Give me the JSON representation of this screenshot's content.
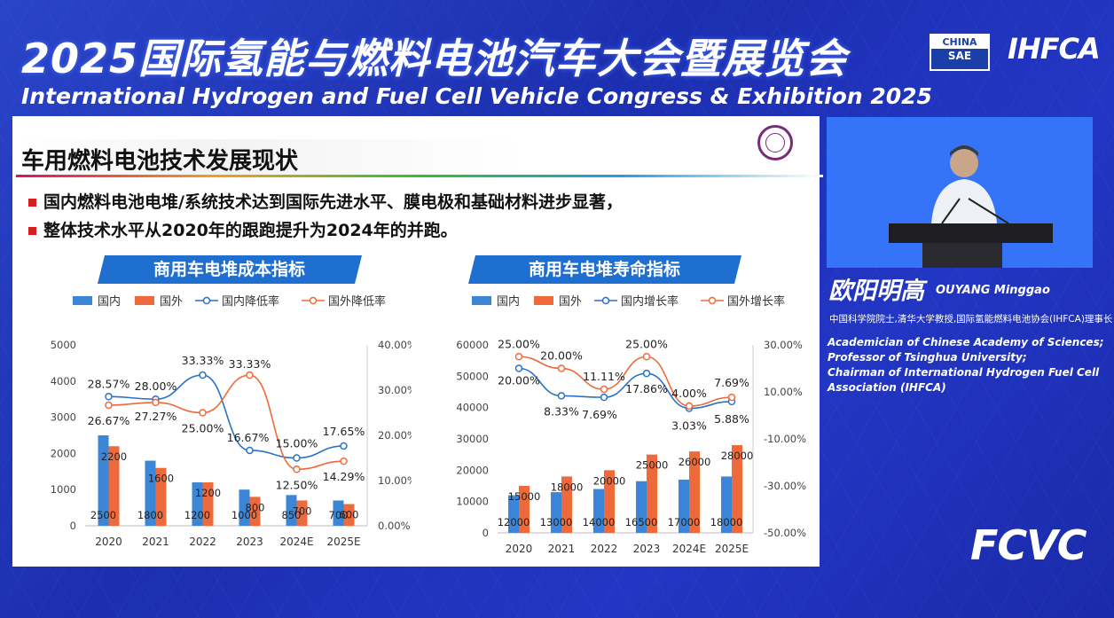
{
  "header": {
    "title_cn": "2025国际氢能与燃料电池汽车大会暨展览会",
    "title_en": "International Hydrogen and Fuel Cell Vehicle Congress & Exhibition 2025",
    "logo_sae_top": "CHINA",
    "logo_sae_bottom": "SAE",
    "logo_ihfca": "IHFCA"
  },
  "slide": {
    "heading": "车用燃料电池技术发展现状",
    "bullets": [
      "国内燃料电池电堆/系统技术达到国际先进水平、膜电极和基础材料进步显著，",
      "整体技术水平从2020年的跟跑提升为2024年的并跑。"
    ]
  },
  "colors": {
    "domestic_bar": "#3b86d6",
    "foreign_bar": "#ef6a3a",
    "domestic_line": "#2a72c8",
    "foreign_line": "#ef6a3a"
  },
  "chart_data": [
    {
      "type": "bar",
      "title": "商用车电堆成本指标",
      "categories": [
        "2020",
        "2021",
        "2022",
        "2023",
        "2024E",
        "2025E"
      ],
      "legend": [
        "国内",
        "国外",
        "国内降低率",
        "国外降低率"
      ],
      "ylim": [
        0,
        5000
      ],
      "yticks": [
        "0",
        "1000",
        "2000",
        "3000",
        "4000",
        "5000"
      ],
      "y2lim": [
        0,
        40
      ],
      "y2ticks": [
        "0.00%",
        "10.00%",
        "20.00%",
        "30.00%",
        "40.00%"
      ],
      "series": [
        {
          "name": "国内",
          "kind": "bar",
          "values": [
            2500,
            1800,
            1200,
            1000,
            850,
            700
          ]
        },
        {
          "name": "国外",
          "kind": "bar",
          "values": [
            2200,
            1600,
            1200,
            800,
            700,
            600
          ]
        },
        {
          "name": "国内降低率",
          "kind": "line",
          "axis": "right",
          "values": [
            28.57,
            28.0,
            33.33,
            16.67,
            15.0,
            17.65
          ],
          "labels": [
            "28.57%",
            "28.00%",
            "33.33%",
            "16.67%",
            "15.00%",
            "17.65%"
          ]
        },
        {
          "name": "国外降低率",
          "kind": "line",
          "axis": "right",
          "values": [
            26.67,
            27.27,
            25.0,
            33.33,
            12.5,
            14.29
          ],
          "labels": [
            "26.67%",
            "27.27%",
            "25.00%",
            "33.33%",
            "12.50%",
            "14.29%"
          ]
        }
      ]
    },
    {
      "type": "bar",
      "title": "商用车电堆寿命指标",
      "categories": [
        "2020",
        "2021",
        "2022",
        "2023",
        "2024E",
        "2025E"
      ],
      "legend": [
        "国内",
        "国外",
        "国内增长率",
        "国外增长率"
      ],
      "ylim": [
        0,
        60000
      ],
      "yticks": [
        "0",
        "10000",
        "20000",
        "30000",
        "40000",
        "50000",
        "60000"
      ],
      "y2lim": [
        -50,
        30
      ],
      "y2ticks": [
        "-50.00%",
        "-30.00%",
        "-10.00%",
        "10.00%",
        "30.00%"
      ],
      "series": [
        {
          "name": "国内",
          "kind": "bar",
          "values": [
            12000,
            13000,
            14000,
            16500,
            17000,
            18000
          ]
        },
        {
          "name": "国外",
          "kind": "bar",
          "values": [
            15000,
            18000,
            20000,
            25000,
            26000,
            28000
          ]
        },
        {
          "name": "国内增长率",
          "kind": "line",
          "axis": "right",
          "values": [
            20.0,
            8.33,
            7.69,
            17.86,
            3.03,
            5.88
          ],
          "labels": [
            "20.00%",
            "8.33%",
            "7.69%",
            "17.86%",
            "3.03%",
            "5.88%"
          ]
        },
        {
          "name": "国外增长率",
          "kind": "line",
          "axis": "right",
          "values": [
            25.0,
            20.0,
            11.11,
            25.0,
            4.0,
            7.69
          ],
          "labels": [
            "25.00%",
            "20.00%",
            "11.11%",
            "25.00%",
            "4.00%",
            "7.69%"
          ]
        }
      ]
    }
  ],
  "speaker": {
    "name_cn": "欧阳明高",
    "name_en": "OUYANG Minggao",
    "title_cn": "中国科学院院士,清华大学教授,国际氢能燃料电池协会(IHFCA)理事长",
    "title_en_lines": [
      "Academician of Chinese Academy of Sciences;",
      "Professor of Tsinghua University;",
      "Chairman of International Hydrogen Fuel Cell",
      "Association (IHFCA)"
    ]
  },
  "footer": {
    "logo_fcvc": "FCVC"
  }
}
